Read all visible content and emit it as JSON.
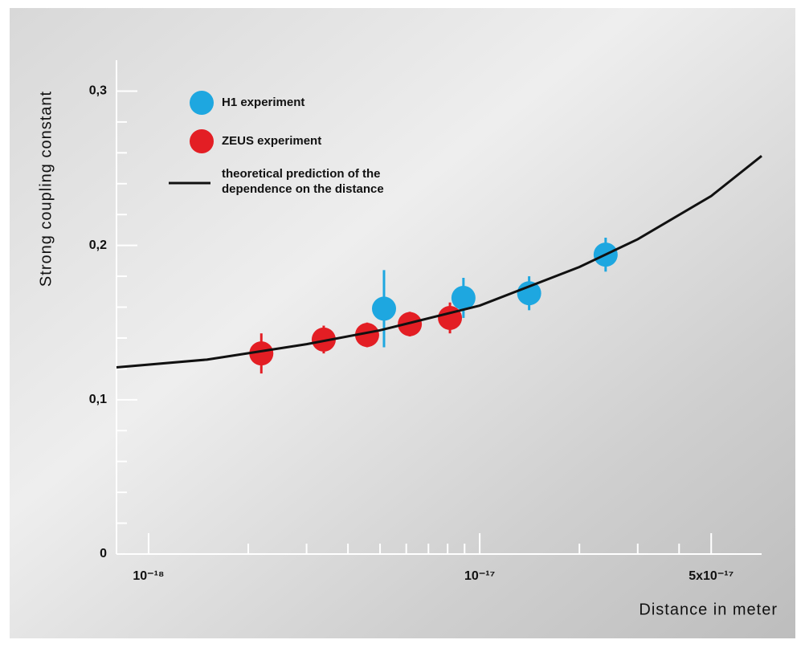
{
  "chart_data": {
    "type": "scatter",
    "xlabel": "Distance in meter",
    "ylabel": "Strong  coupling constant",
    "xscale": "log",
    "xlim": [
      8e-19,
      7.1e-17
    ],
    "xticks": [
      {
        "value": 1e-18,
        "label": "10⁻¹⁸"
      },
      {
        "value": 1e-17,
        "label": "10⁻¹⁷"
      },
      {
        "value": 5e-17,
        "label": "5x10⁻¹⁷"
      }
    ],
    "xminorticks": [
      2e-18,
      3e-18,
      4e-18,
      5e-18,
      6e-18,
      7e-18,
      8e-18,
      9e-18,
      2e-17,
      3e-17,
      4e-17
    ],
    "ylim": [
      0,
      0.32
    ],
    "yticks": [
      0,
      {
        "value": 0.1,
        "label": "0,1"
      },
      {
        "value": 0.2,
        "label": "0,2"
      },
      {
        "value": 0.3,
        "label": "0,3"
      }
    ],
    "yminorticks": [
      0.02,
      0.04,
      0.06,
      0.08,
      0.12,
      0.14,
      0.16,
      0.18,
      0.22,
      0.24,
      0.26,
      0.28
    ],
    "series": [
      {
        "name": "H1 experiment",
        "color": "#1ea7e0",
        "x": [
          5.14e-18,
          8.93e-18,
          1.41e-17,
          2.4e-17
        ],
        "values": [
          0.159,
          0.166,
          0.169,
          0.194
        ],
        "errors": [
          0.025,
          0.013,
          0.011,
          0.011
        ]
      },
      {
        "name": "ZEUS experiment",
        "color": "#e31e24",
        "x": [
          2.19e-18,
          3.38e-18,
          4.57e-18,
          6.15e-18,
          8.13e-18
        ],
        "values": [
          0.13,
          0.139,
          0.142,
          0.149,
          0.153
        ],
        "errors": [
          0.013,
          0.009,
          0.008,
          0.008,
          0.01
        ]
      },
      {
        "name": "theoretical prediction of the\ndependence on the distance",
        "color": "#111111",
        "kind": "line",
        "x": [
          8e-19,
          1.5e-18,
          3e-18,
          5e-18,
          1e-17,
          2e-17,
          3e-17,
          5e-17,
          7.1e-17
        ],
        "values": [
          0.121,
          0.126,
          0.136,
          0.145,
          0.161,
          0.186,
          0.204,
          0.232,
          0.258
        ]
      }
    ]
  }
}
